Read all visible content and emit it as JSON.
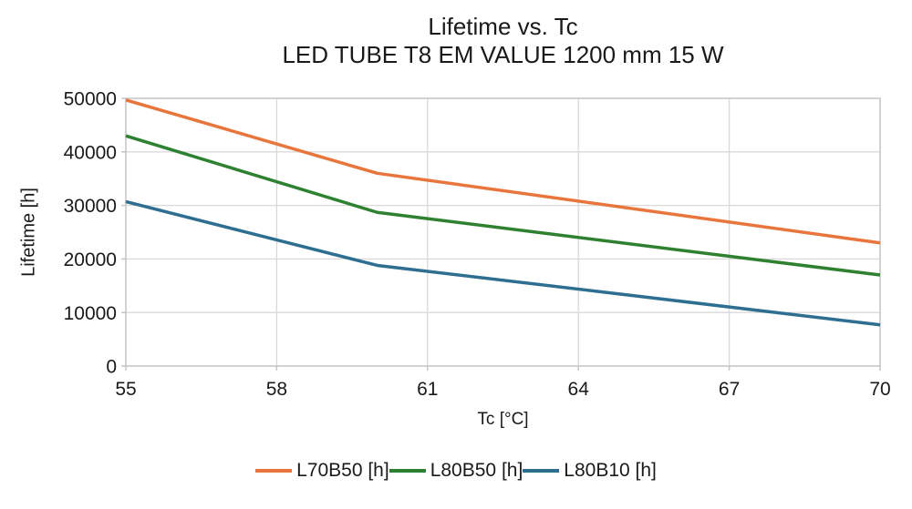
{
  "title": {
    "line1": "Lifetime vs. Tc",
    "line2": "LED TUBE T8 EM VALUE 1200 mm 15 W"
  },
  "chart_data": {
    "type": "line",
    "x": [
      55,
      60,
      70
    ],
    "series": [
      {
        "name": "L70B50 [h]",
        "color": "#E8763C",
        "values": [
          49700,
          36000,
          23000
        ]
      },
      {
        "name": "L80B50 [h]",
        "color": "#2F8132",
        "values": [
          43000,
          28700,
          17000
        ]
      },
      {
        "name": "L80B10 [h]",
        "color": "#2E6E91",
        "values": [
          30700,
          18800,
          7700
        ]
      }
    ],
    "xlabel": "Tc [°C]",
    "ylabel": "Lifetime [h]",
    "xlim": [
      55,
      70
    ],
    "ylim": [
      0,
      50000
    ],
    "x_ticks": [
      55,
      58,
      61,
      64,
      67,
      70
    ],
    "y_ticks": [
      0,
      10000,
      20000,
      30000,
      40000,
      50000
    ],
    "grid": true,
    "legend_position": "bottom"
  },
  "colors": {
    "grid": "#D9D9D9",
    "frame": "#C6C6C6",
    "text": "#1A1A1A",
    "background": "#FFFFFF",
    "line_width": 3.5
  }
}
